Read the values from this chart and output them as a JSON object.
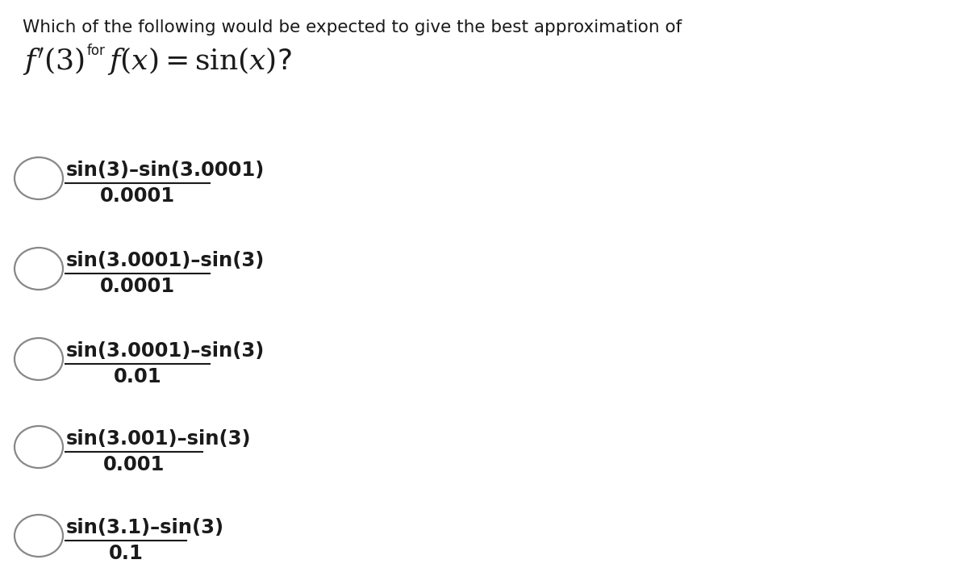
{
  "bg_color": "#ffffff",
  "title_line1": "Which of the following would be expected to give the best approximation of",
  "options": [
    {
      "numerator": "sin(3)–sin(3.0001)",
      "denominator": "0.0001"
    },
    {
      "numerator": "sin(3.0001)–sin(3)",
      "denominator": "0.0001"
    },
    {
      "numerator": "sin(3.0001)–sin(3)",
      "denominator": "0.01"
    },
    {
      "numerator": "sin(3.001)–sin(3)",
      "denominator": "0.001"
    },
    {
      "numerator": "sin(3.1)–sin(3)",
      "denominator": "0.1"
    }
  ],
  "font_color": "#1a1a1a",
  "figsize": [
    12.0,
    7.04
  ],
  "dpi": 100
}
